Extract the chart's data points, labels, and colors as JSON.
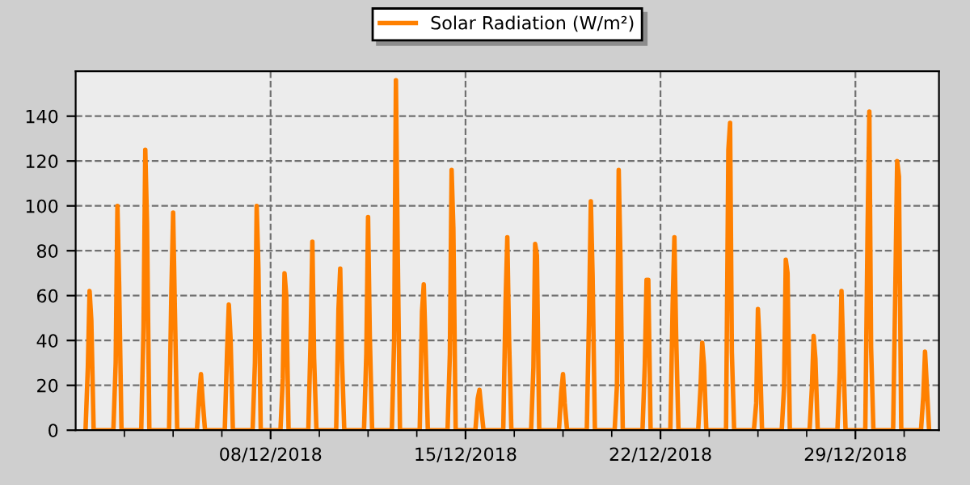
{
  "chart_data": {
    "type": "line",
    "xlim": [
      "2018-12-01T00:00",
      "2019-01-01T00:00"
    ],
    "ylim": [
      0,
      160
    ],
    "yticks": [
      0,
      20,
      40,
      60,
      80,
      100,
      120,
      140
    ],
    "xticks": [
      {
        "value": "2018-12-02T18:00",
        "label": null
      },
      {
        "value": "2018-12-04T12:00",
        "label": null
      },
      {
        "value": "2018-12-06T06:00",
        "label": null
      },
      {
        "value": "2018-12-08T00:00",
        "label": "08/12/2018"
      },
      {
        "value": "2018-12-09T18:00",
        "label": null
      },
      {
        "value": "2018-12-11T12:00",
        "label": null
      },
      {
        "value": "2018-12-13T06:00",
        "label": null
      },
      {
        "value": "2018-12-15T00:00",
        "label": "15/12/2018"
      },
      {
        "value": "2018-12-16T18:00",
        "label": null
      },
      {
        "value": "2018-12-18T12:00",
        "label": null
      },
      {
        "value": "2018-12-20T06:00",
        "label": null
      },
      {
        "value": "2018-12-22T00:00",
        "label": "22/12/2018"
      },
      {
        "value": "2018-12-23T18:00",
        "label": null
      },
      {
        "value": "2018-12-25T12:00",
        "label": null
      },
      {
        "value": "2018-12-27T06:00",
        "label": null
      },
      {
        "value": "2018-12-29T00:00",
        "label": "29/12/2018"
      },
      {
        "value": "2018-12-30T18:00",
        "label": null
      }
    ],
    "grid": true,
    "line_style": "solid",
    "legend": "top",
    "series": [
      {
        "name": "Solar Radiation (W/m²)",
        "color": "#ff8000",
        "x": [
          "2018-12-01T08:30",
          "2018-12-01T10:30",
          "2018-12-01T12:00",
          "2018-12-01T13:30",
          "2018-12-01T15:30",
          "2018-12-02T08:30",
          "2018-12-02T10:30",
          "2018-12-02T12:00",
          "2018-12-02T13:30",
          "2018-12-02T15:30",
          "2018-12-03T08:30",
          "2018-12-03T10:30",
          "2018-12-03T12:00",
          "2018-12-03T13:30",
          "2018-12-03T15:30",
          "2018-12-04T08:30",
          "2018-12-04T10:30",
          "2018-12-04T12:00",
          "2018-12-04T13:30",
          "2018-12-04T15:30",
          "2018-12-05T08:30",
          "2018-12-05T10:30",
          "2018-12-05T12:00",
          "2018-12-05T13:30",
          "2018-12-05T15:30",
          "2018-12-06T08:30",
          "2018-12-06T10:30",
          "2018-12-06T12:00",
          "2018-12-06T13:30",
          "2018-12-06T15:30",
          "2018-12-07T08:30",
          "2018-12-07T10:30",
          "2018-12-07T12:00",
          "2018-12-07T13:30",
          "2018-12-07T15:30",
          "2018-12-08T08:30",
          "2018-12-08T10:30",
          "2018-12-08T12:00",
          "2018-12-08T13:30",
          "2018-12-08T15:30",
          "2018-12-09T08:30",
          "2018-12-09T10:30",
          "2018-12-09T12:00",
          "2018-12-09T13:30",
          "2018-12-09T15:30",
          "2018-12-10T08:30",
          "2018-12-10T10:30",
          "2018-12-10T12:00",
          "2018-12-10T13:30",
          "2018-12-10T15:30",
          "2018-12-11T08:30",
          "2018-12-11T10:30",
          "2018-12-11T12:00",
          "2018-12-11T13:30",
          "2018-12-11T15:30",
          "2018-12-12T08:30",
          "2018-12-12T10:30",
          "2018-12-12T12:00",
          "2018-12-12T13:30",
          "2018-12-12T15:30",
          "2018-12-13T08:30",
          "2018-12-13T10:30",
          "2018-12-13T12:00",
          "2018-12-13T13:30",
          "2018-12-13T15:30",
          "2018-12-14T08:30",
          "2018-12-14T10:30",
          "2018-12-14T12:00",
          "2018-12-14T13:30",
          "2018-12-14T15:30",
          "2018-12-15T08:30",
          "2018-12-15T10:30",
          "2018-12-15T12:00",
          "2018-12-15T13:30",
          "2018-12-15T15:30",
          "2018-12-16T08:30",
          "2018-12-16T10:30",
          "2018-12-16T12:00",
          "2018-12-16T13:30",
          "2018-12-16T15:30",
          "2018-12-17T08:30",
          "2018-12-17T10:30",
          "2018-12-17T12:00",
          "2018-12-17T13:30",
          "2018-12-17T15:30",
          "2018-12-18T08:30",
          "2018-12-18T10:30",
          "2018-12-18T12:00",
          "2018-12-18T13:30",
          "2018-12-18T15:30",
          "2018-12-19T08:30",
          "2018-12-19T10:30",
          "2018-12-19T12:00",
          "2018-12-19T13:30",
          "2018-12-19T15:30",
          "2018-12-20T08:30",
          "2018-12-20T10:30",
          "2018-12-20T12:00",
          "2018-12-20T13:30",
          "2018-12-20T15:30",
          "2018-12-21T08:30",
          "2018-12-21T10:30",
          "2018-12-21T12:00",
          "2018-12-21T13:30",
          "2018-12-21T15:30",
          "2018-12-22T08:30",
          "2018-12-22T10:30",
          "2018-12-22T12:00",
          "2018-12-22T13:30",
          "2018-12-22T15:30",
          "2018-12-23T08:30",
          "2018-12-23T10:30",
          "2018-12-23T12:00",
          "2018-12-23T13:30",
          "2018-12-23T15:30",
          "2018-12-24T08:30",
          "2018-12-24T10:30",
          "2018-12-24T12:00",
          "2018-12-24T13:30",
          "2018-12-24T15:30",
          "2018-12-25T08:30",
          "2018-12-25T10:30",
          "2018-12-25T12:00",
          "2018-12-25T13:30",
          "2018-12-25T15:30",
          "2018-12-26T08:30",
          "2018-12-26T10:30",
          "2018-12-26T12:00",
          "2018-12-26T13:30",
          "2018-12-26T15:30",
          "2018-12-27T08:30",
          "2018-12-27T10:30",
          "2018-12-27T12:00",
          "2018-12-27T13:30",
          "2018-12-27T15:30",
          "2018-12-28T08:30",
          "2018-12-28T10:30",
          "2018-12-28T12:00",
          "2018-12-28T13:30",
          "2018-12-28T15:30",
          "2018-12-29T08:30",
          "2018-12-29T10:30",
          "2018-12-29T12:00",
          "2018-12-29T13:30",
          "2018-12-29T15:30",
          "2018-12-30T08:30",
          "2018-12-30T10:30",
          "2018-12-30T12:00",
          "2018-12-30T13:30",
          "2018-12-30T15:30",
          "2018-12-31T08:30",
          "2018-12-31T10:30",
          "2018-12-31T12:00",
          "2018-12-31T13:30",
          "2018-12-31T15:30"
        ],
        "values": [
          0,
          28,
          62,
          49,
          0,
          0,
          30,
          100,
          64,
          0,
          0,
          46,
          125,
          92,
          0,
          0,
          62,
          97,
          54,
          0,
          0,
          16,
          25,
          13,
          0,
          0,
          35,
          56,
          41,
          0,
          0,
          30,
          100,
          72,
          0,
          0,
          23,
          70,
          60,
          0,
          0,
          41,
          84,
          32,
          0,
          0,
          54,
          72,
          32,
          0,
          0,
          34,
          95,
          42,
          0,
          0,
          41,
          156,
          82,
          0,
          0,
          53,
          65,
          39,
          0,
          0,
          34,
          116,
          90,
          0,
          0,
          14,
          18,
          10,
          0,
          0,
          57,
          86,
          41,
          0,
          0,
          28,
          83,
          78,
          0,
          0,
          17,
          25,
          12,
          0,
          0,
          53,
          102,
          69,
          0,
          0,
          20,
          116,
          77,
          0,
          0,
          29,
          67,
          67,
          0,
          0,
          56,
          86,
          42,
          0,
          0,
          19,
          39,
          29,
          0,
          0,
          125,
          137,
          35,
          0,
          0,
          12,
          54,
          38,
          0,
          0,
          19,
          76,
          70,
          0,
          0,
          19,
          42,
          32,
          0,
          0,
          26,
          62,
          35,
          0,
          0,
          90,
          142,
          37,
          0,
          0,
          67,
          120,
          113,
          0,
          0,
          15,
          35,
          20,
          0
        ]
      }
    ]
  }
}
